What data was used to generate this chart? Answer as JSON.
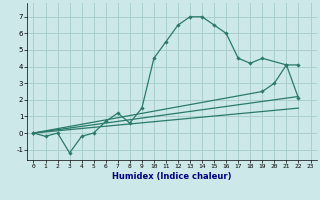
{
  "xlabel": "Humidex (Indice chaleur)",
  "xlim": [
    -0.5,
    23.5
  ],
  "ylim": [
    -1.6,
    7.8
  ],
  "yticks": [
    -1,
    0,
    1,
    2,
    3,
    4,
    5,
    6,
    7
  ],
  "bg_color": "#cce8e8",
  "grid_color": "#aacece",
  "line_color": "#2a7a6a",
  "line1_x": [
    0,
    1,
    2,
    3,
    4,
    5,
    6,
    7,
    8,
    9,
    10,
    11,
    12,
    13,
    14,
    15,
    16,
    17,
    18,
    19,
    21,
    22
  ],
  "line1_y": [
    0.0,
    -0.2,
    0.0,
    -1.2,
    -0.2,
    0.0,
    0.7,
    1.2,
    0.6,
    1.5,
    4.5,
    5.5,
    6.5,
    7.0,
    7.0,
    6.5,
    6.0,
    4.5,
    4.2,
    4.5,
    4.1,
    4.1
  ],
  "line2_x": [
    0,
    19,
    20,
    21,
    22
  ],
  "line2_y": [
    0.0,
    2.5,
    3.0,
    4.1,
    2.1
  ],
  "line3_x": [
    0,
    22
  ],
  "line3_y": [
    0.0,
    2.2
  ],
  "line4_x": [
    0,
    22
  ],
  "line4_y": [
    0.0,
    1.5
  ],
  "lw": 0.9,
  "ms": 2.2,
  "tick_fontsize": 4.5,
  "xlabel_fontsize": 6.0
}
